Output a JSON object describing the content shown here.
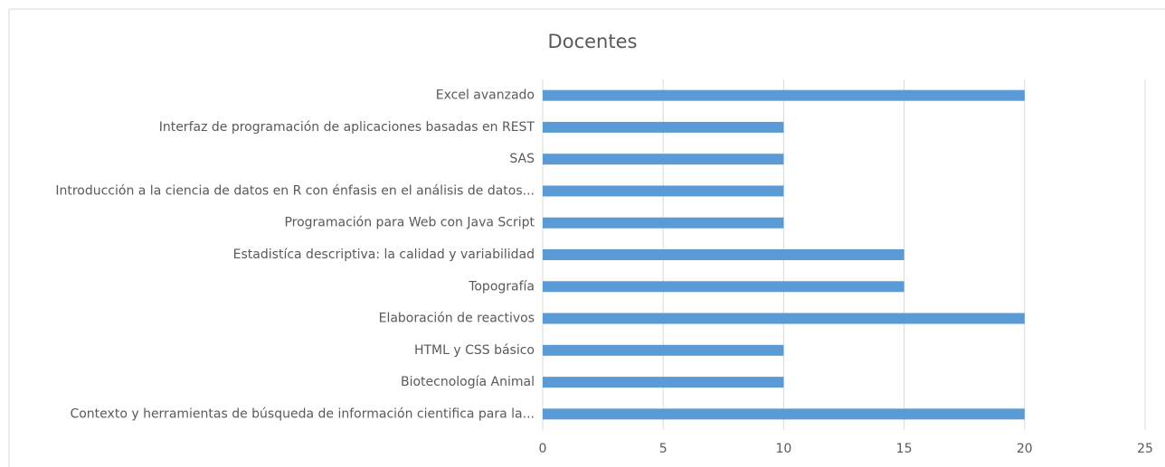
{
  "chart_data": {
    "type": "bar",
    "orientation": "horizontal",
    "title": "Docentes",
    "categories": [
      "Excel avanzado",
      "Interfaz de programación de aplicaciones basadas en REST",
      "SAS",
      "Introducción a la ciencia de datos en R con énfasis en el análisis de datos...",
      "Programación para Web con Java Script",
      "Estadistíca descriptiva: la calidad y variabilidad",
      "Topografía",
      "Elaboración de reactivos",
      "HTML y CSS básico",
      "Biotecnología Animal",
      "Contexto y herramientas de búsqueda de información cientifica para la..."
    ],
    "values": [
      20,
      10,
      10,
      10,
      10,
      15,
      15,
      20,
      10,
      10,
      20
    ],
    "color": "#5b9bd5",
    "xlim": [
      0,
      25
    ],
    "xticks": [
      0,
      5,
      10,
      15,
      20,
      25
    ],
    "grid": true
  }
}
